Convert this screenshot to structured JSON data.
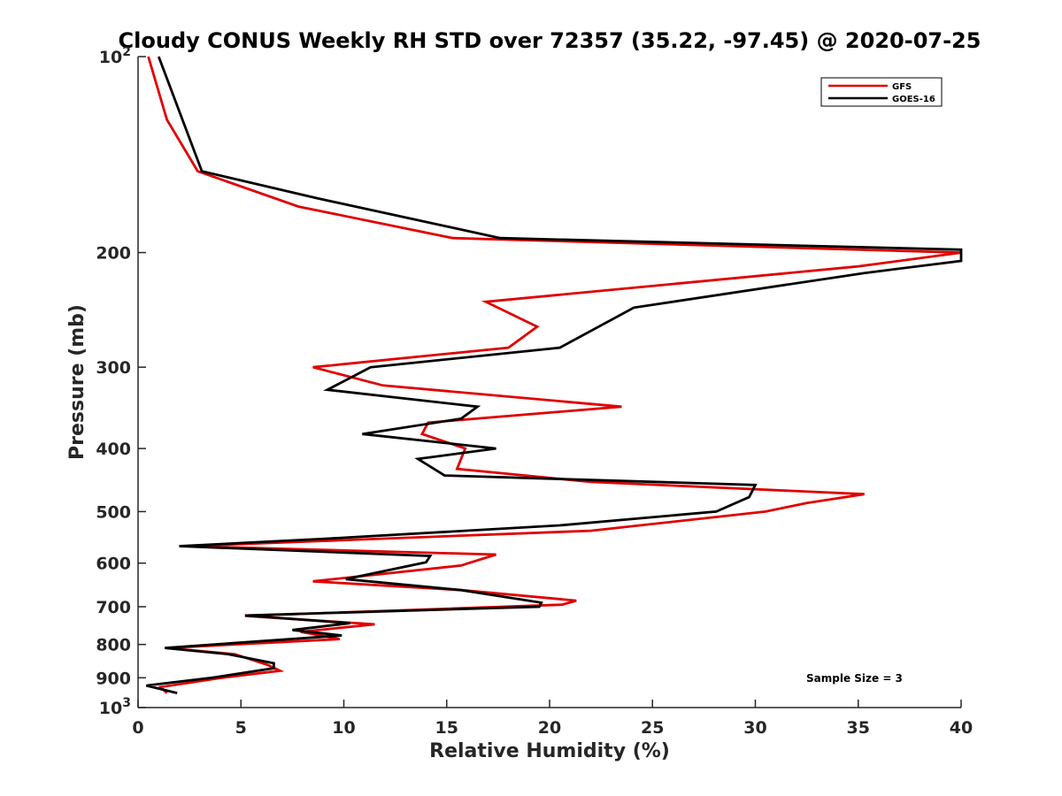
{
  "chart_data": {
    "type": "line",
    "title": "Cloudy CONUS Weekly RH STD over 72357 (35.22, -97.45) @ 2020-07-25",
    "xlabel": "Relative Humidity (%)",
    "ylabel": "Pressure (mb)",
    "xlim": [
      0,
      40
    ],
    "ylim": [
      100,
      1000
    ],
    "yscale": "log",
    "y_reversed": true,
    "x_ticks": [
      "0",
      "5",
      "10",
      "15",
      "20",
      "25",
      "30",
      "35",
      "40"
    ],
    "y_ticks": [
      {
        "value": 100,
        "base": "10",
        "exp": "2"
      },
      {
        "value": 200,
        "label": "200"
      },
      {
        "value": 300,
        "label": "300"
      },
      {
        "value": 400,
        "label": "400"
      },
      {
        "value": 500,
        "label": "500"
      },
      {
        "value": 600,
        "label": "600"
      },
      {
        "value": 700,
        "label": "700"
      },
      {
        "value": 800,
        "label": "800"
      },
      {
        "value": 900,
        "label": "900"
      },
      {
        "value": 1000,
        "base": "10",
        "exp": "3"
      }
    ],
    "legend_position": "top-right",
    "annotation": "Sample Size = 3",
    "series": [
      {
        "name": "GFS",
        "color": "#e00000",
        "points": [
          [
            0.5,
            100
          ],
          [
            1.4,
            125
          ],
          [
            2.9,
            150
          ],
          [
            7.8,
            170
          ],
          [
            15.3,
            190
          ],
          [
            40.0,
            200
          ],
          [
            35.0,
            210
          ],
          [
            16.9,
            238
          ],
          [
            19.4,
            260
          ],
          [
            18.0,
            280
          ],
          [
            8.5,
            300
          ],
          [
            11.9,
            320
          ],
          [
            23.5,
            345
          ],
          [
            14.1,
            365
          ],
          [
            13.8,
            380
          ],
          [
            15.9,
            400
          ],
          [
            15.5,
            430
          ],
          [
            22.0,
            450
          ],
          [
            35.3,
            470
          ],
          [
            32.5,
            485
          ],
          [
            30.5,
            500
          ],
          [
            22.0,
            535
          ],
          [
            2.3,
            565
          ],
          [
            17.4,
            582
          ],
          [
            15.7,
            605
          ],
          [
            8.5,
            640
          ],
          [
            15.7,
            660
          ],
          [
            21.3,
            685
          ],
          [
            20.6,
            695
          ],
          [
            5.2,
            723
          ],
          [
            11.5,
            745
          ],
          [
            7.9,
            765
          ],
          [
            9.8,
            785
          ],
          [
            1.4,
            810
          ],
          [
            4.7,
            828
          ],
          [
            6.3,
            860
          ],
          [
            6.9,
            878
          ],
          [
            4.1,
            900
          ],
          [
            1.1,
            930
          ],
          [
            1.4,
            950
          ]
        ]
      },
      {
        "name": "GOES-16",
        "color": "#000000",
        "points": [
          [
            1.0,
            100
          ],
          [
            3.1,
            150
          ],
          [
            8.7,
            165
          ],
          [
            17.6,
            190
          ],
          [
            40.0,
            198
          ],
          [
            40.0,
            206
          ],
          [
            35.3,
            215
          ],
          [
            24.1,
            243
          ],
          [
            20.5,
            280
          ],
          [
            11.3,
            300
          ],
          [
            9.2,
            325
          ],
          [
            16.5,
            345
          ],
          [
            15.7,
            360
          ],
          [
            10.9,
            380
          ],
          [
            17.4,
            400
          ],
          [
            13.6,
            415
          ],
          [
            14.9,
            440
          ],
          [
            30.0,
            455
          ],
          [
            29.7,
            475
          ],
          [
            28.1,
            500
          ],
          [
            20.5,
            525
          ],
          [
            9.3,
            550
          ],
          [
            2.0,
            565
          ],
          [
            14.2,
            585
          ],
          [
            14.0,
            598
          ],
          [
            10.1,
            635
          ],
          [
            15.7,
            660
          ],
          [
            19.6,
            690
          ],
          [
            19.5,
            700
          ],
          [
            5.2,
            722
          ],
          [
            10.3,
            742
          ],
          [
            7.5,
            760
          ],
          [
            9.9,
            775
          ],
          [
            1.3,
            810
          ],
          [
            4.4,
            828
          ],
          [
            6.6,
            855
          ],
          [
            6.6,
            870
          ],
          [
            3.6,
            900
          ],
          [
            0.4,
            925
          ],
          [
            1.9,
            950
          ]
        ]
      }
    ]
  }
}
